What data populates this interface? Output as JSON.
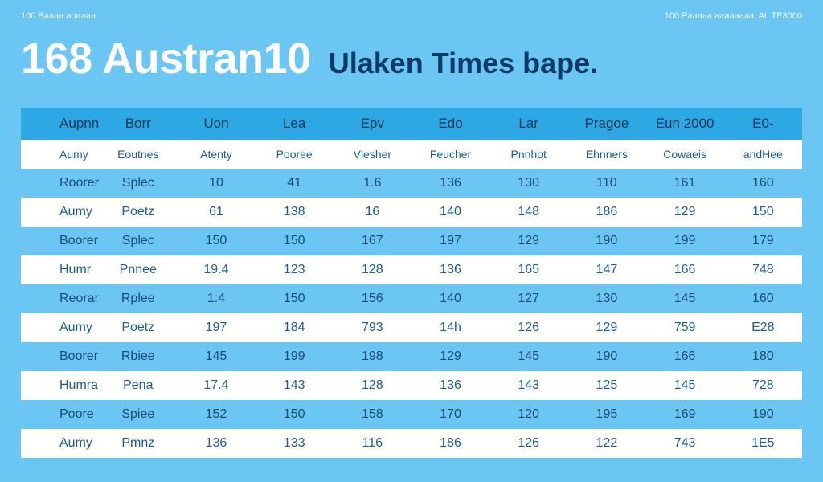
{
  "header": {
    "meta_left": "100 Baaaa aoaaaa",
    "meta_right": "100 Paaaaa aaaaaaaa. AL TE3000",
    "title": "168 Austran10",
    "subtitle": "Ulaken Times bape."
  },
  "table": {
    "columns": [
      "Aupnn",
      "Borr",
      "Uon",
      "Lea",
      "Epv",
      "Edo",
      "Lar",
      "Pragoe",
      "Eun 2000",
      "E0-"
    ],
    "rows": [
      [
        "Aumy",
        "Eoutnes",
        "Atenty",
        "Pooree",
        "Vlesher",
        "Feucher",
        "Pnnhot",
        "Ehnners",
        "Cowaeis",
        "andHee"
      ],
      [
        "Roorer",
        "Splec",
        "10",
        "41",
        "1.6",
        "136",
        "130",
        "110",
        "161",
        "160"
      ],
      [
        "Aumy",
        "Poetz",
        "61",
        "138",
        "16",
        "140",
        "148",
        "186",
        "129",
        "150"
      ],
      [
        "Boorer",
        "Splec",
        "150",
        "150",
        "167",
        "197",
        "129",
        "190",
        "199",
        "179"
      ],
      [
        "Humr",
        "Pnnee",
        "19.4",
        "123",
        "128",
        "136",
        "165",
        "147",
        "166",
        "748"
      ],
      [
        "Reoran",
        "Rplee",
        "1:4",
        "150",
        "156",
        "140",
        "127",
        "130",
        "145",
        "160"
      ],
      [
        "Aumy",
        "Poetz",
        "197",
        "184",
        "793",
        "14h",
        "126",
        "129",
        "759",
        "E28"
      ],
      [
        "Boorer",
        "Rbiee",
        "145",
        "199",
        "198",
        "129",
        "145",
        "190",
        "166",
        "180"
      ],
      [
        "Humra",
        "Pena",
        "17.4",
        "143",
        "128",
        "136",
        "143",
        "125",
        "145",
        "728"
      ],
      [
        "Poore",
        "Spiee",
        "152",
        "150",
        "158",
        "170",
        "120",
        "195",
        "169",
        "190"
      ],
      [
        "Aumy",
        "Pmnz",
        "136",
        "133",
        "116",
        "186",
        "126",
        "122",
        "743",
        "1E5"
      ]
    ]
  }
}
